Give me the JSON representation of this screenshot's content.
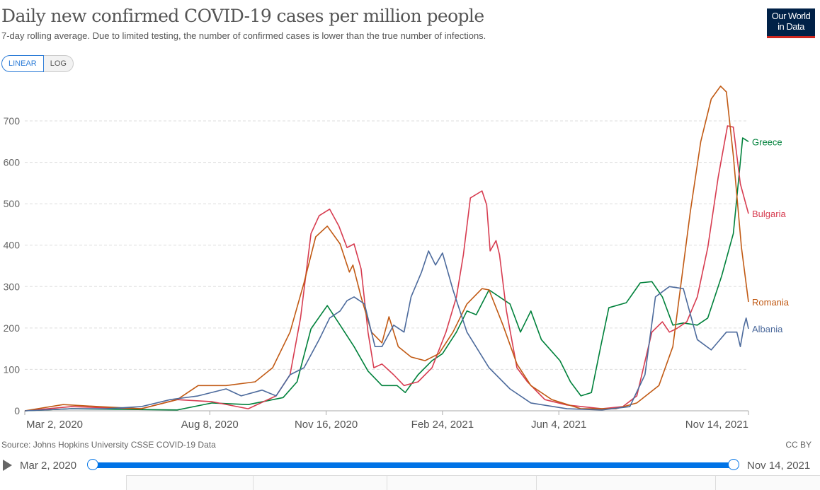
{
  "header": {
    "title": "Daily new confirmed COVID-19 cases per million people",
    "subtitle": "7-day rolling average. Due to limited testing, the number of confirmed cases is lower than the true number of infections.",
    "logo_line1": "Our World",
    "logo_line2": "in Data"
  },
  "controls": {
    "linear": "LINEAR",
    "log": "LOG"
  },
  "footer": {
    "source": "Source: Johns Hopkins University CSSE COVID-19 Data",
    "license": "CC BY"
  },
  "timeline": {
    "start": "Mar 2, 2020",
    "end": "Nov 14, 2021"
  },
  "chart_data": {
    "type": "line",
    "title": "Daily new confirmed COVID-19 cases per million people",
    "xlabel": "",
    "ylabel": "",
    "x_unit": "days since Mar 2, 2020",
    "xlim": [
      0,
      622
    ],
    "ylim": [
      0,
      800
    ],
    "grid": true,
    "legend": "labels at line ends, right",
    "y_ticks": [
      0,
      100,
      200,
      300,
      400,
      500,
      600,
      700
    ],
    "x_ticks": [
      {
        "day": 0,
        "label": "Mar 2, 2020"
      },
      {
        "day": 159,
        "label": "Aug 8, 2020"
      },
      {
        "day": 259,
        "label": "Nov 16, 2020"
      },
      {
        "day": 359,
        "label": "Feb 24, 2021"
      },
      {
        "day": 459,
        "label": "Jun 4, 2021"
      },
      {
        "day": 622,
        "label": "Nov 14, 2021"
      }
    ],
    "series": [
      {
        "name": "Greece",
        "color": "#00813b",
        "points": [
          [
            0,
            0
          ],
          [
            40,
            5
          ],
          [
            131,
            2
          ],
          [
            161,
            19
          ],
          [
            192,
            15
          ],
          [
            222,
            32
          ],
          [
            234,
            70
          ],
          [
            246,
            198
          ],
          [
            260,
            254
          ],
          [
            271,
            207
          ],
          [
            283,
            155
          ],
          [
            295,
            96
          ],
          [
            307,
            61
          ],
          [
            320,
            61
          ],
          [
            327,
            44
          ],
          [
            338,
            87
          ],
          [
            350,
            121
          ],
          [
            359,
            138
          ],
          [
            371,
            190
          ],
          [
            380,
            241
          ],
          [
            388,
            232
          ],
          [
            399,
            292
          ],
          [
            408,
            275
          ],
          [
            417,
            258
          ],
          [
            426,
            190
          ],
          [
            435,
            241
          ],
          [
            444,
            172
          ],
          [
            460,
            121
          ],
          [
            469,
            70
          ],
          [
            478,
            36
          ],
          [
            487,
            44
          ],
          [
            495,
            155
          ],
          [
            502,
            249
          ],
          [
            517,
            261
          ],
          [
            529,
            309
          ],
          [
            539,
            312
          ],
          [
            548,
            275
          ],
          [
            557,
            207
          ],
          [
            566,
            212
          ],
          [
            578,
            207
          ],
          [
            587,
            224
          ],
          [
            599,
            326
          ],
          [
            609,
            428
          ],
          [
            617,
            659
          ],
          [
            622,
            650
          ]
        ]
      },
      {
        "name": "Bulgaria",
        "color": "#d73c50",
        "points": [
          [
            0,
            0
          ],
          [
            40,
            10
          ],
          [
            100,
            5
          ],
          [
            131,
            27
          ],
          [
            161,
            22
          ],
          [
            192,
            5
          ],
          [
            216,
            36
          ],
          [
            228,
            87
          ],
          [
            237,
            224
          ],
          [
            246,
            428
          ],
          [
            253,
            471
          ],
          [
            262,
            487
          ],
          [
            270,
            446
          ],
          [
            277,
            394
          ],
          [
            283,
            403
          ],
          [
            289,
            343
          ],
          [
            295,
            190
          ],
          [
            300,
            104
          ],
          [
            307,
            113
          ],
          [
            317,
            87
          ],
          [
            326,
            61
          ],
          [
            338,
            70
          ],
          [
            350,
            104
          ],
          [
            362,
            190
          ],
          [
            371,
            275
          ],
          [
            377,
            377
          ],
          [
            383,
            514
          ],
          [
            393,
            531
          ],
          [
            397,
            497
          ],
          [
            400,
            386
          ],
          [
            405,
            411
          ],
          [
            408,
            377
          ],
          [
            414,
            241
          ],
          [
            423,
            104
          ],
          [
            432,
            70
          ],
          [
            447,
            27
          ],
          [
            466,
            14
          ],
          [
            496,
            5
          ],
          [
            514,
            10
          ],
          [
            526,
            36
          ],
          [
            539,
            190
          ],
          [
            548,
            215
          ],
          [
            554,
            190
          ],
          [
            560,
            198
          ],
          [
            569,
            215
          ],
          [
            578,
            275
          ],
          [
            587,
            394
          ],
          [
            596,
            565
          ],
          [
            604,
            688
          ],
          [
            609,
            685
          ],
          [
            615,
            548
          ],
          [
            622,
            476
          ]
        ]
      },
      {
        "name": "Romania",
        "color": "#c15a14",
        "points": [
          [
            0,
            0
          ],
          [
            33,
            15
          ],
          [
            64,
            10
          ],
          [
            100,
            5
          ],
          [
            131,
            27
          ],
          [
            149,
            61
          ],
          [
            173,
            61
          ],
          [
            198,
            70
          ],
          [
            213,
            104
          ],
          [
            228,
            190
          ],
          [
            240,
            309
          ],
          [
            250,
            420
          ],
          [
            260,
            446
          ],
          [
            271,
            403
          ],
          [
            279,
            335
          ],
          [
            282,
            352
          ],
          [
            289,
            275
          ],
          [
            298,
            190
          ],
          [
            307,
            164
          ],
          [
            313,
            227
          ],
          [
            321,
            155
          ],
          [
            332,
            130
          ],
          [
            344,
            121
          ],
          [
            356,
            138
          ],
          [
            368,
            190
          ],
          [
            380,
            258
          ],
          [
            393,
            295
          ],
          [
            399,
            292
          ],
          [
            411,
            207
          ],
          [
            423,
            113
          ],
          [
            435,
            61
          ],
          [
            453,
            27
          ],
          [
            478,
            5
          ],
          [
            508,
            5
          ],
          [
            526,
            19
          ],
          [
            545,
            61
          ],
          [
            557,
            155
          ],
          [
            572,
            480
          ],
          [
            581,
            650
          ],
          [
            590,
            753
          ],
          [
            598,
            784
          ],
          [
            603,
            770
          ],
          [
            609,
            616
          ],
          [
            616,
            394
          ],
          [
            622,
            263
          ]
        ]
      },
      {
        "name": "Albania",
        "color": "#4c6a9c",
        "points": [
          [
            0,
            0
          ],
          [
            40,
            5
          ],
          [
            70,
            5
          ],
          [
            100,
            10
          ],
          [
            125,
            27
          ],
          [
            149,
            36
          ],
          [
            173,
            53
          ],
          [
            186,
            36
          ],
          [
            204,
            50
          ],
          [
            216,
            36
          ],
          [
            228,
            87
          ],
          [
            240,
            104
          ],
          [
            253,
            172
          ],
          [
            262,
            224
          ],
          [
            271,
            241
          ],
          [
            277,
            266
          ],
          [
            283,
            275
          ],
          [
            292,
            258
          ],
          [
            301,
            155
          ],
          [
            307,
            155
          ],
          [
            317,
            207
          ],
          [
            326,
            190
          ],
          [
            332,
            275
          ],
          [
            341,
            335
          ],
          [
            347,
            386
          ],
          [
            353,
            352
          ],
          [
            359,
            381
          ],
          [
            368,
            292
          ],
          [
            380,
            190
          ],
          [
            399,
            104
          ],
          [
            417,
            53
          ],
          [
            435,
            19
          ],
          [
            466,
            5
          ],
          [
            496,
            2
          ],
          [
            520,
            10
          ],
          [
            533,
            87
          ],
          [
            542,
            275
          ],
          [
            554,
            300
          ],
          [
            566,
            295
          ],
          [
            578,
            172
          ],
          [
            590,
            147
          ],
          [
            603,
            190
          ],
          [
            612,
            190
          ],
          [
            615,
            155
          ],
          [
            618,
            203
          ],
          [
            620,
            224
          ],
          [
            622,
            198
          ]
        ]
      }
    ]
  }
}
